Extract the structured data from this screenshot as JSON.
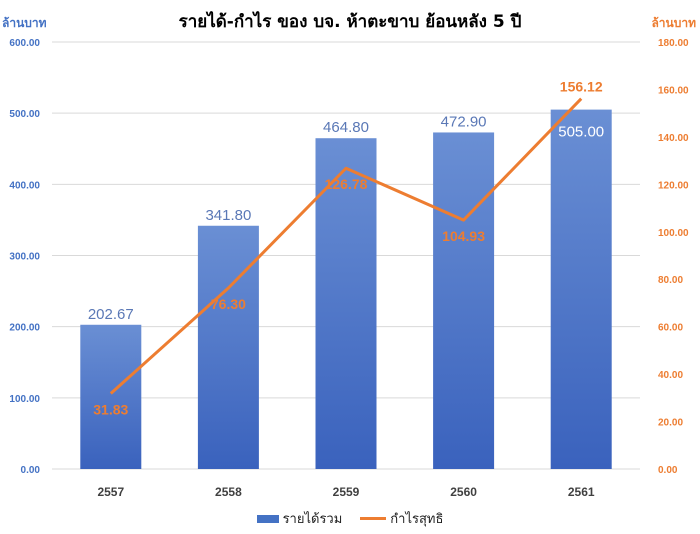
{
  "chart_data": {
    "type": "bar+line",
    "title": "รายได้-กำไร ของ บจ. ห้าตะขาบ ย้อนหลัง 5 ปี",
    "categories": [
      "2557",
      "2558",
      "2559",
      "2560",
      "2561"
    ],
    "series": [
      {
        "name": "รายได้รวม",
        "type": "bar",
        "axis": "left",
        "values": [
          202.67,
          341.8,
          464.8,
          472.9,
          505.0
        ],
        "labels": [
          "202.67",
          "341.80",
          "464.80",
          "472.90",
          "505.00"
        ]
      },
      {
        "name": "กำไรสุทธิ",
        "type": "line",
        "axis": "right",
        "values": [
          31.83,
          76.3,
          126.78,
          104.93,
          156.12
        ],
        "labels": [
          "31.83",
          "76.30",
          "126.78",
          "104.93",
          "156.12"
        ]
      }
    ],
    "y_left": {
      "label": "ล้านบาท",
      "ylim": [
        0,
        600
      ],
      "ticks": [
        0,
        100,
        200,
        300,
        400,
        500,
        600
      ],
      "tick_labels": [
        "0.00",
        "100.00",
        "200.00",
        "300.00",
        "400.00",
        "500.00",
        "600.00"
      ]
    },
    "y_right": {
      "label": "ล้านบาท",
      "ylim": [
        0,
        180
      ],
      "ticks": [
        0,
        20,
        40,
        60,
        80,
        100,
        120,
        140,
        160,
        180
      ],
      "tick_labels": [
        "0.00",
        "20.00",
        "40.00",
        "60.00",
        "80.00",
        "100.00",
        "120.00",
        "140.00",
        "160.00",
        "180.00"
      ]
    },
    "grid": true,
    "legend_position": "bottom",
    "colors": {
      "bar": "#4472c4",
      "line": "#ed7d31",
      "left_axis": "#4472c4",
      "right_axis": "#ed7d31"
    }
  }
}
